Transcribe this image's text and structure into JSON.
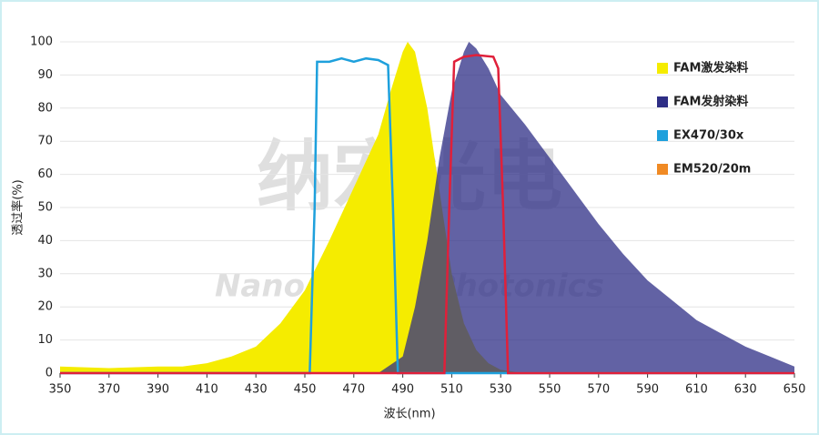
{
  "chart_data": {
    "type": "area",
    "x_label": "波长(nm)",
    "y_label": "透过率(%)",
    "annotations": [
      "纳宏光电",
      "Nano Macro Photonics"
    ],
    "xlim": [
      350,
      650
    ],
    "xticks": [
      350,
      370,
      390,
      410,
      430,
      450,
      470,
      490,
      510,
      530,
      550,
      570,
      590,
      610,
      630,
      650
    ],
    "ylim": [
      0,
      100
    ],
    "yticks": [
      0,
      10,
      20,
      30,
      40,
      50,
      60,
      70,
      80,
      90,
      100
    ],
    "grid": true,
    "series": [
      {
        "name": "FAM激发染料",
        "color": "#f5ec00",
        "kind": "area",
        "x": [
          350,
          370,
          390,
          400,
          410,
          420,
          430,
          440,
          450,
          460,
          470,
          480,
          485,
          490,
          492,
          495,
          500,
          505,
          510,
          515,
          520,
          525,
          530,
          540,
          650
        ],
        "values": [
          2,
          1.5,
          2,
          2,
          3,
          5,
          8,
          15,
          25,
          40,
          56,
          72,
          85,
          97,
          100,
          97,
          80,
          55,
          30,
          15,
          7,
          3,
          1,
          0,
          0
        ]
      },
      {
        "name": "FAM发射染料",
        "color": "#2e2e85",
        "kind": "area",
        "x": [
          350,
          480,
          490,
          495,
          500,
          505,
          510,
          515,
          517,
          520,
          525,
          530,
          540,
          550,
          560,
          570,
          580,
          590,
          600,
          610,
          620,
          630,
          640,
          650
        ],
        "values": [
          0,
          0,
          5,
          20,
          40,
          65,
          85,
          97,
          100,
          98,
          92,
          84,
          75,
          65,
          55,
          45,
          36,
          28,
          22,
          16,
          12,
          8,
          5,
          2
        ]
      },
      {
        "name": "EX470/30x",
        "color": "#1ea0dc",
        "kind": "line",
        "x": [
          350,
          452,
          454,
          455,
          460,
          465,
          470,
          475,
          480,
          484,
          486,
          488,
          650
        ],
        "values": [
          0,
          0,
          50,
          94,
          94,
          95,
          94,
          95,
          94.5,
          93,
          50,
          0,
          0
        ]
      },
      {
        "name": "EM520/20m",
        "color": "#e0203a",
        "legend_color": "#f08a24",
        "kind": "line",
        "x": [
          350,
          507,
          509,
          511,
          515,
          520,
          527,
          529,
          531,
          533,
          650
        ],
        "values": [
          0,
          0,
          50,
          94,
          95.5,
          96,
          95.5,
          92,
          50,
          0,
          0
        ]
      }
    ]
  }
}
